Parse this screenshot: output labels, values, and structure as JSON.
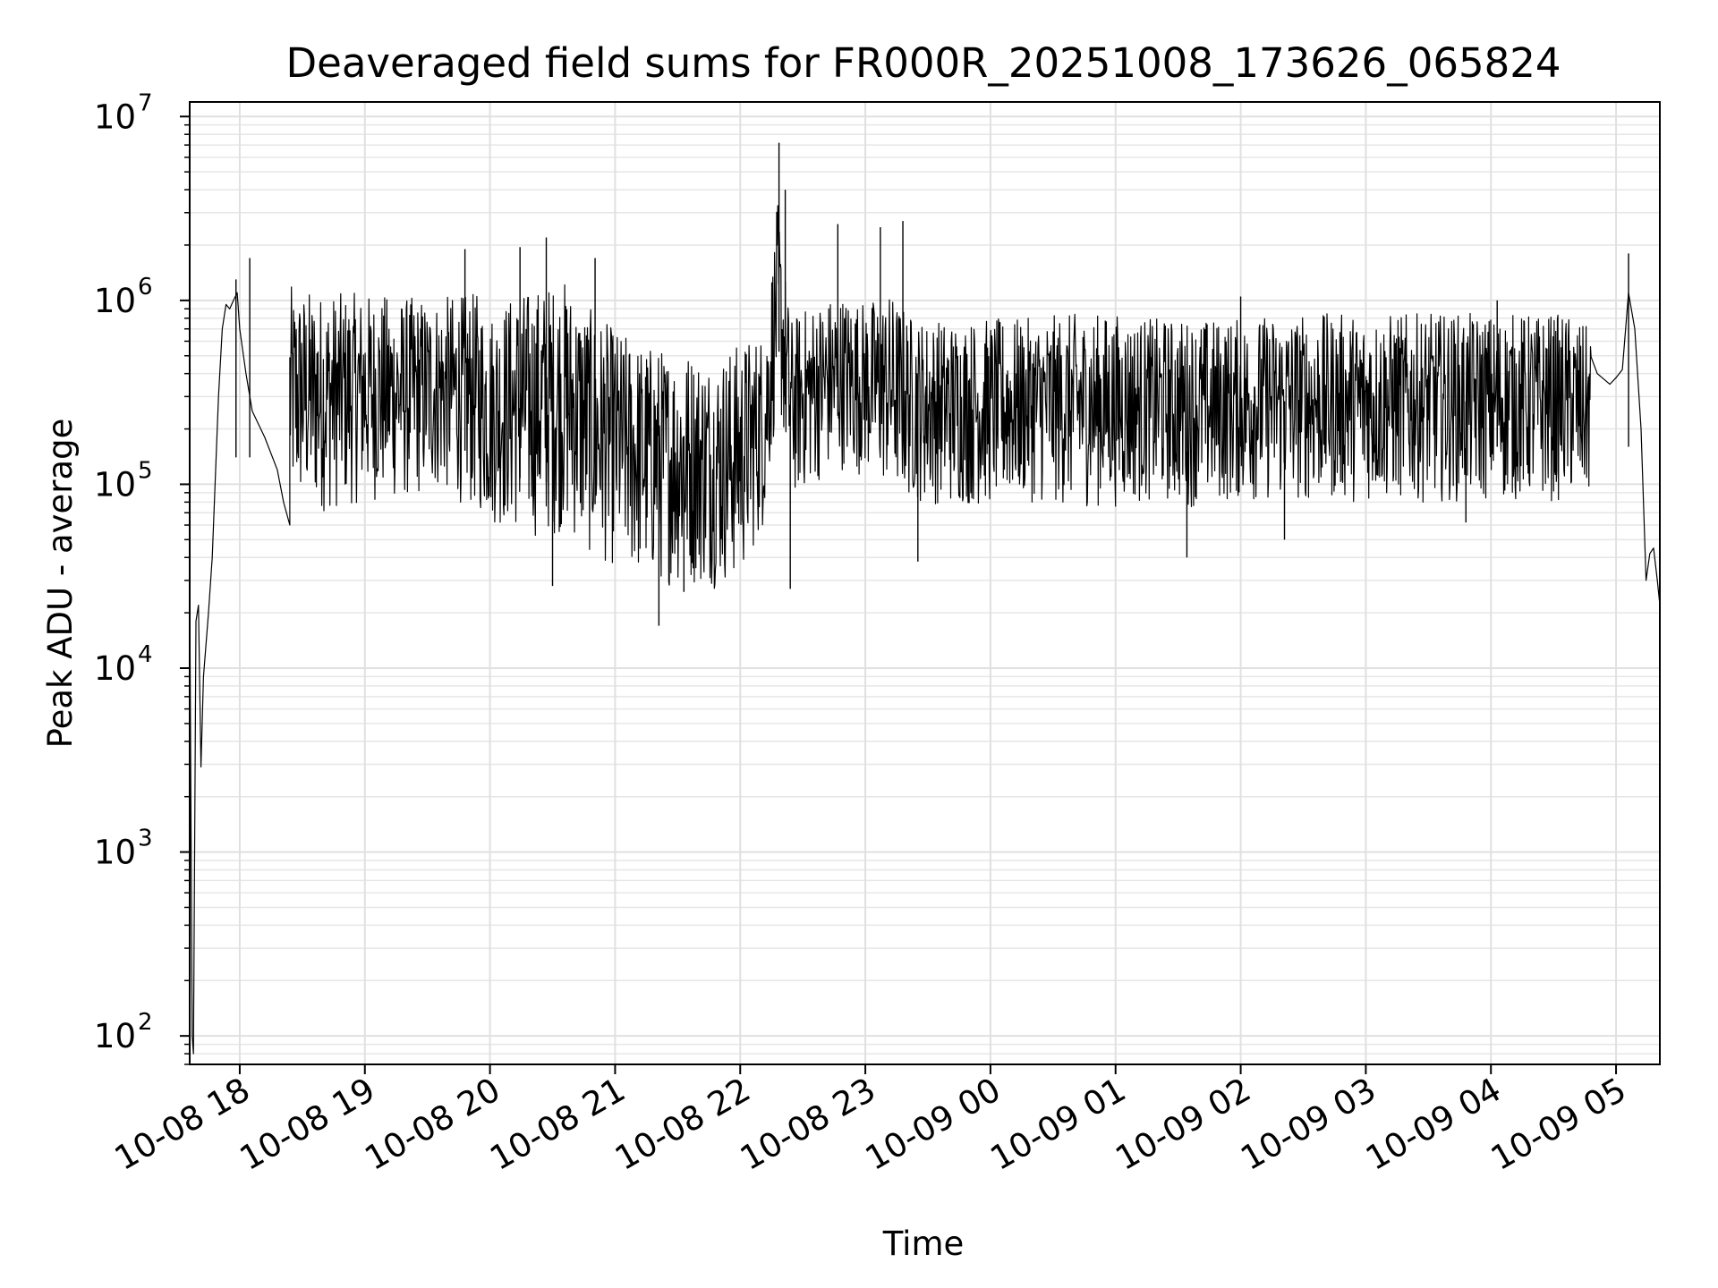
{
  "chart_data": {
    "type": "line",
    "title": "Deaveraged field sums for FR000R_20251008_173626_065824",
    "xlabel": "Time",
    "ylabel": "Peak ADU - average",
    "yscale": "log",
    "ylim": [
      70,
      12000000
    ],
    "xlim_hours": [
      17.6,
      29.35
    ],
    "grid": true,
    "x_ticks": [
      {
        "label": "10-08 18",
        "hour": 18
      },
      {
        "label": "10-08 19",
        "hour": 19
      },
      {
        "label": "10-08 20",
        "hour": 20
      },
      {
        "label": "10-08 21",
        "hour": 21
      },
      {
        "label": "10-08 22",
        "hour": 22
      },
      {
        "label": "10-08 23",
        "hour": 23
      },
      {
        "label": "10-09 00",
        "hour": 24
      },
      {
        "label": "10-09 01",
        "hour": 25
      },
      {
        "label": "10-09 02",
        "hour": 26
      },
      {
        "label": "10-09 03",
        "hour": 27
      },
      {
        "label": "10-09 04",
        "hour": 28
      },
      {
        "label": "10-09 05",
        "hour": 29
      }
    ],
    "y_ticks": [
      {
        "base": "10",
        "exp": "2",
        "value": 100
      },
      {
        "base": "10",
        "exp": "3",
        "value": 1000
      },
      {
        "base": "10",
        "exp": "4",
        "value": 10000
      },
      {
        "base": "10",
        "exp": "5",
        "value": 100000
      },
      {
        "base": "10",
        "exp": "6",
        "value": 1000000
      },
      {
        "base": "10",
        "exp": "7",
        "value": 10000000
      }
    ],
    "series": [
      {
        "name": "Peak ADU - average",
        "color": "#000000",
        "points_hour_value": [
          [
            17.6,
            28000
          ],
          [
            17.62,
            100
          ],
          [
            17.63,
            80
          ],
          [
            17.65,
            18000
          ],
          [
            17.67,
            22000
          ],
          [
            17.69,
            2900
          ],
          [
            17.71,
            9000
          ],
          [
            17.75,
            20000
          ],
          [
            17.78,
            40000
          ],
          [
            17.8,
            90000
          ],
          [
            17.83,
            300000
          ],
          [
            17.86,
            700000
          ],
          [
            17.89,
            950000
          ],
          [
            17.92,
            900000
          ],
          [
            17.95,
            1000000
          ],
          [
            17.98,
            1100000
          ],
          [
            18.0,
            700000
          ],
          [
            18.05,
            400000
          ],
          [
            18.1,
            250000
          ],
          [
            18.2,
            180000
          ],
          [
            18.3,
            120000
          ],
          [
            18.35,
            80000
          ],
          [
            18.4,
            60000
          ]
        ],
        "envelope_hour_low_high": [
          [
            18.4,
            70000,
            1200000
          ],
          [
            18.7,
            70000,
            1100000
          ],
          [
            19.0,
            80000,
            1100000
          ],
          [
            19.3,
            80000,
            1050000
          ],
          [
            19.6,
            90000,
            1050000
          ],
          [
            19.9,
            70000,
            1100000
          ],
          [
            20.0,
            60000,
            900000
          ],
          [
            20.2,
            55000,
            1100000
          ],
          [
            20.4,
            50000,
            1200000
          ],
          [
            20.6,
            55000,
            1300000
          ],
          [
            20.8,
            40000,
            900000
          ],
          [
            21.0,
            35000,
            700000
          ],
          [
            21.2,
            30000,
            600000
          ],
          [
            21.4,
            28000,
            550000
          ],
          [
            21.6,
            28000,
            550000
          ],
          [
            21.8,
            27000,
            500000
          ],
          [
            22.0,
            30000,
            600000
          ],
          [
            22.2,
            60000,
            700000
          ],
          [
            22.3,
            300000,
            3500000
          ],
          [
            22.4,
            80000,
            800000
          ],
          [
            22.6,
            100000,
            1000000
          ],
          [
            22.8,
            120000,
            1100000
          ],
          [
            23.0,
            110000,
            1000000
          ],
          [
            23.2,
            90000,
            1100000
          ],
          [
            23.4,
            80000,
            800000
          ],
          [
            23.7,
            75000,
            800000
          ],
          [
            24.0,
            75000,
            800000
          ],
          [
            24.3,
            80000,
            800000
          ],
          [
            24.6,
            75000,
            850000
          ],
          [
            25.0,
            75000,
            850000
          ],
          [
            25.3,
            80000,
            800000
          ],
          [
            25.6,
            75000,
            800000
          ],
          [
            26.0,
            80000,
            800000
          ],
          [
            26.3,
            80000,
            850000
          ],
          [
            26.6,
            80000,
            850000
          ],
          [
            27.0,
            80000,
            850000
          ],
          [
            27.3,
            80000,
            850000
          ],
          [
            27.6,
            80000,
            850000
          ],
          [
            28.0,
            80000,
            850000
          ],
          [
            28.3,
            80000,
            850000
          ],
          [
            28.6,
            80000,
            850000
          ],
          [
            28.8,
            80000,
            700000
          ]
        ],
        "spikes_hour_value": [
          [
            17.97,
            1300000
          ],
          [
            18.08,
            1700000
          ],
          [
            19.8,
            1900000
          ],
          [
            20.24,
            1950000
          ],
          [
            20.45,
            2200000
          ],
          [
            20.84,
            1700000
          ],
          [
            22.31,
            7200000
          ],
          [
            22.36,
            4000000
          ],
          [
            22.78,
            2600000
          ],
          [
            23.12,
            2500000
          ],
          [
            23.3,
            2700000
          ],
          [
            25.57,
            40000
          ],
          [
            26.0,
            1050000
          ],
          [
            28.05,
            1000000
          ],
          [
            29.1,
            1800000
          ]
        ],
        "dips_hour_value": [
          [
            20.5,
            28000
          ],
          [
            21.35,
            17000
          ],
          [
            21.55,
            26000
          ],
          [
            22.4,
            27000
          ],
          [
            23.42,
            38000
          ],
          [
            26.35,
            50000
          ],
          [
            27.8,
            62000
          ]
        ],
        "tail_hour_value": [
          [
            28.85,
            400000
          ],
          [
            28.95,
            350000
          ],
          [
            29.0,
            380000
          ],
          [
            29.05,
            420000
          ],
          [
            29.1,
            1100000
          ],
          [
            29.15,
            700000
          ],
          [
            29.2,
            200000
          ],
          [
            29.24,
            30000
          ],
          [
            29.27,
            42000
          ],
          [
            29.3,
            45000
          ],
          [
            29.33,
            30000
          ],
          [
            29.35,
            22000
          ]
        ]
      }
    ]
  }
}
